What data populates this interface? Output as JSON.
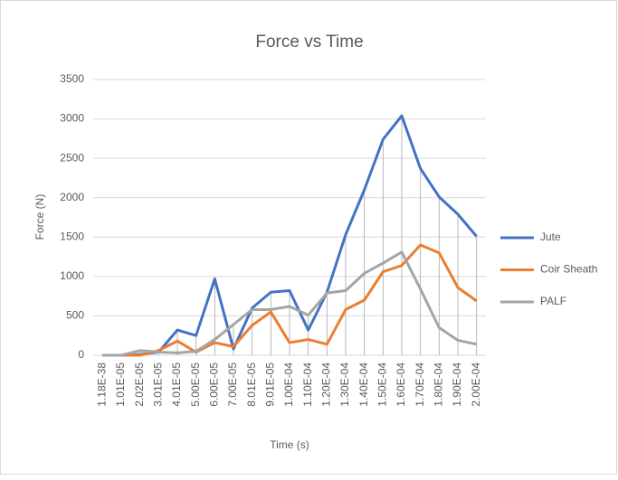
{
  "chart_data": {
    "type": "line",
    "title": "Force vs Time",
    "x_label": "Time (s)",
    "y_label": "Force (N)",
    "categories": [
      "1.18E-38",
      "1.01E-05",
      "2.02E-05",
      "3.01E-05",
      "4.01E-05",
      "5.00E-05",
      "6.00E-05",
      "7.00E-05",
      "8.01E-05",
      "9.01E-05",
      "1.00E-04",
      "1.10E-04",
      "1.20E-04",
      "1.30E-04",
      "1.40E-04",
      "1.50E-04",
      "1.60E-04",
      "1.70E-04",
      "1.80E-04",
      "1.90E-04",
      "2.00E-04"
    ],
    "series": [
      {
        "name": "Jute",
        "color": "#4472c4",
        "values": [
          0,
          0,
          10,
          40,
          320,
          250,
          970,
          80,
          600,
          800,
          820,
          320,
          800,
          1530,
          2100,
          2740,
          3040,
          2370,
          2010,
          1790,
          1510
        ]
      },
      {
        "name": "Coir Sheath",
        "color": "#ed7d31",
        "values": [
          0,
          0,
          0,
          60,
          180,
          40,
          160,
          110,
          380,
          550,
          160,
          200,
          140,
          580,
          700,
          1060,
          1140,
          1400,
          1300,
          860,
          690
        ]
      },
      {
        "name": "PALF",
        "color": "#a5a5a5",
        "values": [
          0,
          0,
          60,
          40,
          30,
          50,
          200,
          390,
          580,
          580,
          620,
          510,
          790,
          820,
          1040,
          1170,
          1310,
          840,
          350,
          190,
          140
        ]
      }
    ],
    "ylim": [
      0,
      3500
    ],
    "yticks": [
      0,
      500,
      1000,
      1500,
      2000,
      2500,
      3000,
      3500
    ],
    "grid": true,
    "drop_lines": true,
    "legend": "right"
  }
}
